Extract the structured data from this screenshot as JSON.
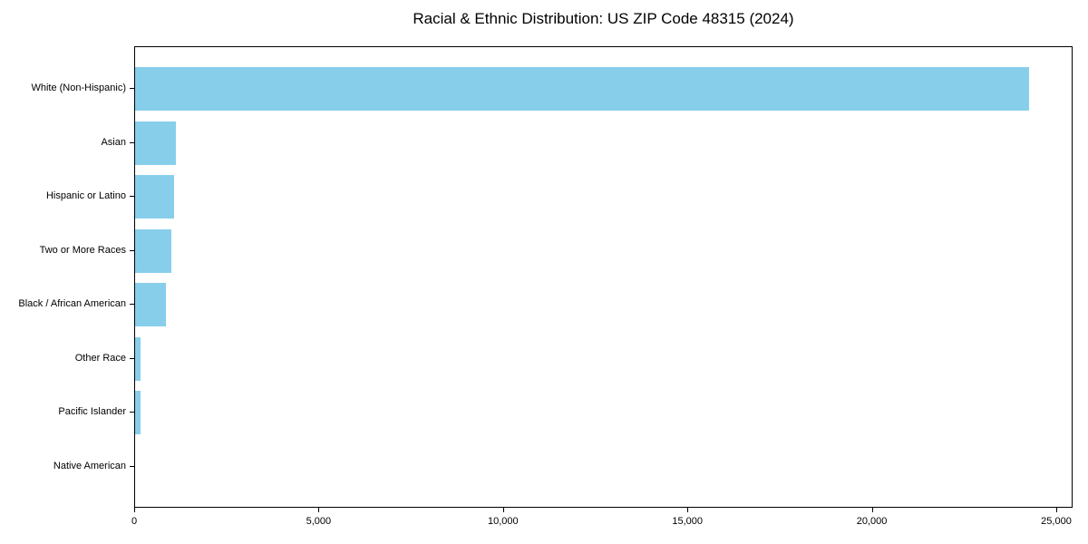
{
  "title": "Racial & Ethnic Distribution: US ZIP Code 48315 (2024)",
  "chart_data": {
    "type": "bar",
    "orientation": "horizontal",
    "title": "Racial & Ethnic Distribution: US ZIP Code 48315 (2024)",
    "categories": [
      "White (Non-Hispanic)",
      "Asian",
      "Hispanic or Latino",
      "Two or More Races",
      "Black / African American",
      "Other Race",
      "Pacific Islander",
      "Native American"
    ],
    "values": [
      24250,
      1100,
      1060,
      990,
      830,
      150,
      140,
      0
    ],
    "xlabel": "",
    "ylabel": "",
    "xlim": [
      0,
      25000
    ],
    "xticks": {
      "values": [
        0,
        5000,
        10000,
        15000,
        20000,
        25000
      ],
      "labels": [
        "0",
        "5,000",
        "10,000",
        "15,000",
        "20,000",
        "25,000"
      ]
    },
    "bar_color": "#87CEEB",
    "text_color": "#000000",
    "spine_color": "#000000",
    "background": "#ffffff",
    "grid": false,
    "legend": null
  }
}
